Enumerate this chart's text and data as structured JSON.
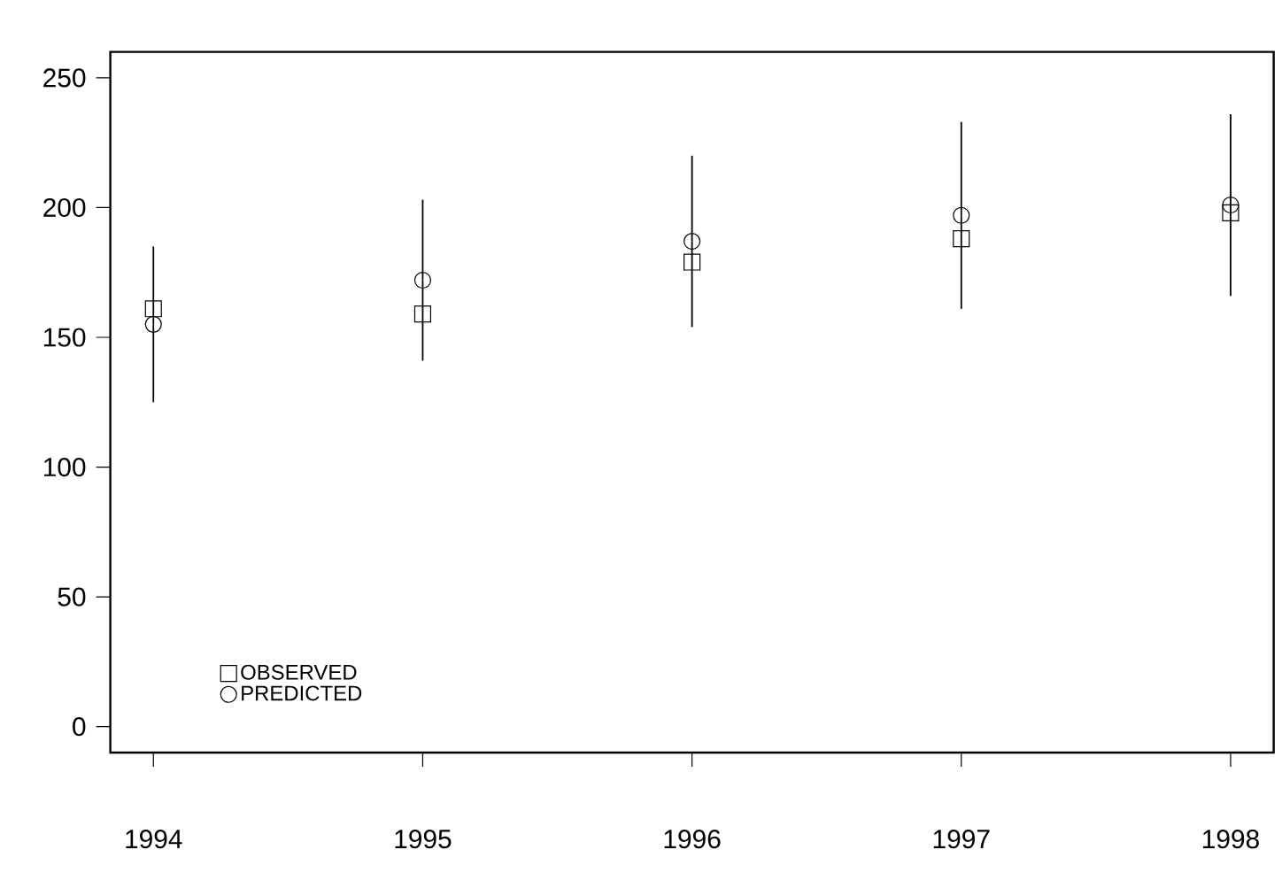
{
  "chart_data": {
    "type": "scatter",
    "x": [
      1994,
      1995,
      1996,
      1997,
      1998
    ],
    "series": [
      {
        "name": "OBSERVED",
        "color": "#000000",
        "marker": "square",
        "values": [
          161,
          159,
          179,
          188,
          198
        ]
      },
      {
        "name": "PREDICTED",
        "color": "#000000",
        "marker": "circle",
        "values": [
          155,
          172,
          187,
          197,
          201
        ],
        "errors": [
          30,
          31,
          33,
          36,
          35
        ]
      }
    ],
    "xlim": [
      1993.84,
      1998.16
    ],
    "xticks": [
      1994,
      1995,
      1996,
      1997,
      1998
    ],
    "ylim": [
      -10,
      260
    ],
    "yticks": [
      0,
      50,
      100,
      150,
      200,
      250
    ],
    "grid": false,
    "legend": "bottom left"
  }
}
